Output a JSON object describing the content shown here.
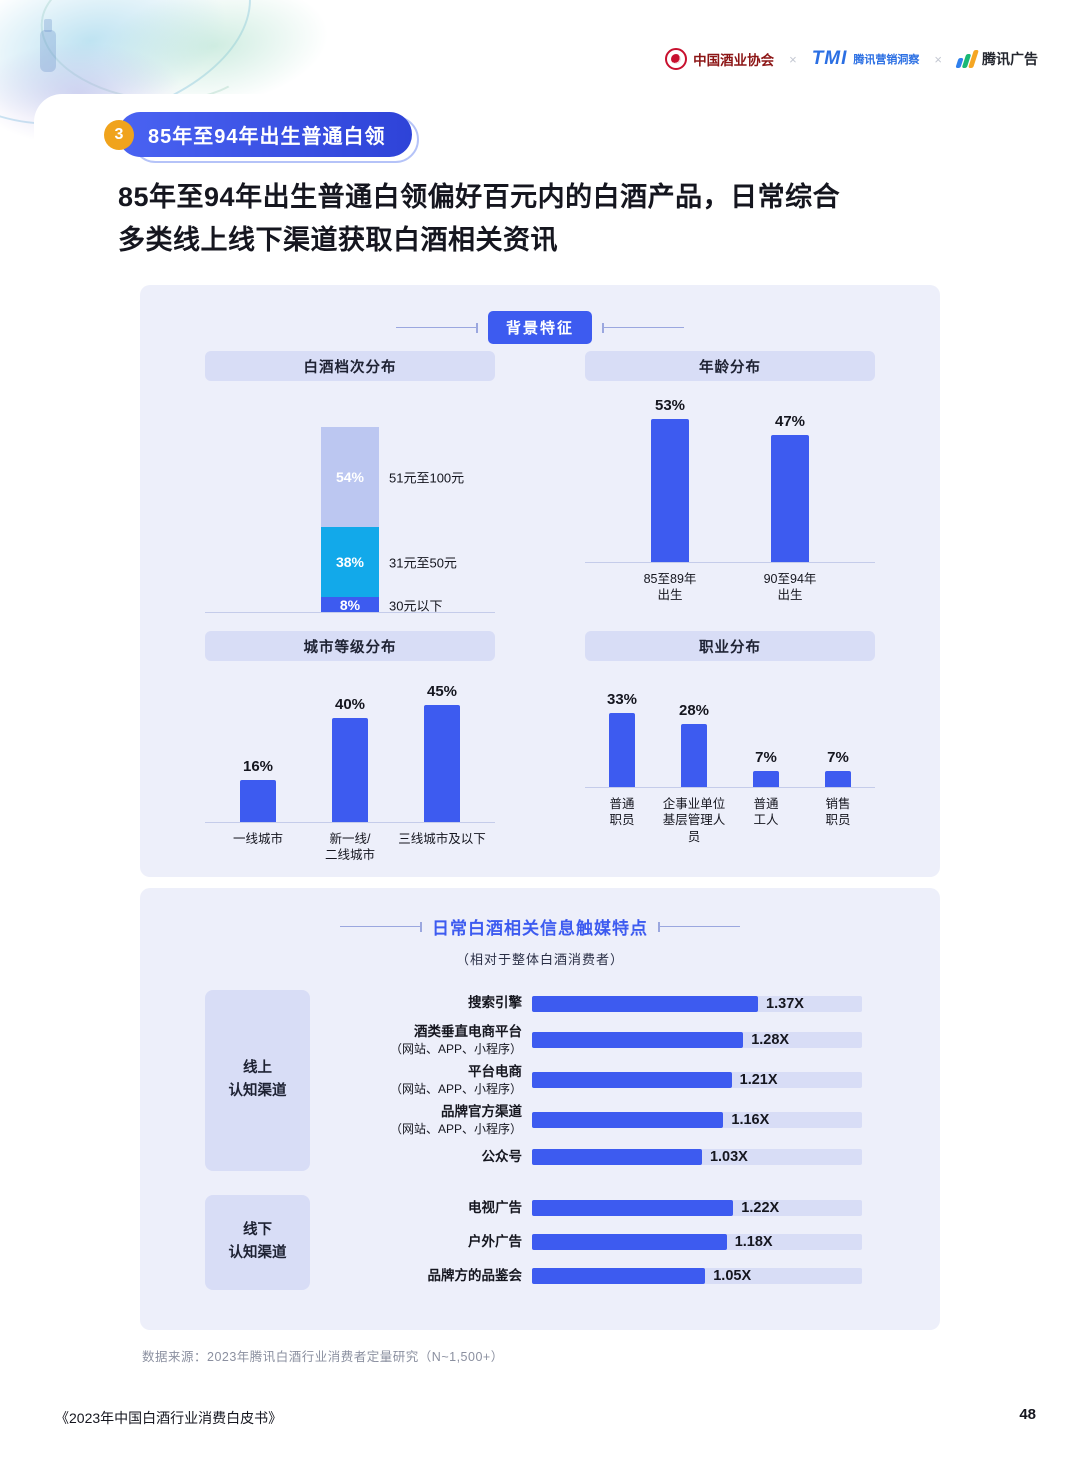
{
  "header": {
    "logo1": "中国酒业协会",
    "logo_sep": "×",
    "logo2_mark": "TMI",
    "logo2_text": "腾讯营销洞察",
    "logo3": "腾讯广告"
  },
  "badge": {
    "number": "3",
    "title": "85年至94年出生普通白领"
  },
  "heading": {
    "line1": "85年至94年出生普通白领偏好百元内的白酒产品，日常综合",
    "line2": "多类线上线下渠道获取白酒相关资讯"
  },
  "section_background": {
    "title": "背景特征"
  },
  "colors": {
    "primary_blue": "#3D5BF0",
    "cyan": "#12A9EA",
    "lavender": "#BCC7F1",
    "panel_bg": "#EDEFFA",
    "track": "#D8DDF6",
    "badge_orange": "#F0A31C"
  },
  "chart_data": [
    {
      "type": "bar",
      "subtype": "stacked-vertical",
      "title": "白酒档次分布",
      "ylim": [
        0,
        100
      ],
      "segments": [
        {
          "label": "51元至100元",
          "value": 54,
          "pct": "54%",
          "color": "#BCC7F1"
        },
        {
          "label": "31元至50元",
          "value": 38,
          "pct": "38%",
          "color": "#12A9EA"
        },
        {
          "label": "30元以下",
          "value": 8,
          "pct": "8%",
          "color": "#3D5BF0"
        }
      ]
    },
    {
      "type": "bar",
      "title": "年龄分布",
      "categories": [
        "85至89年\n出生",
        "90至94年\n出生"
      ],
      "values": [
        53,
        47
      ],
      "ylim": [
        0,
        60
      ]
    },
    {
      "type": "bar",
      "title": "城市等级分布",
      "categories": [
        "一线城市",
        "新一线/\n二线城市",
        "三线城市及以下"
      ],
      "values": [
        16,
        40,
        45
      ],
      "ylim": [
        0,
        50
      ]
    },
    {
      "type": "bar",
      "title": "职业分布",
      "categories": [
        "普通\n职员",
        "企事业单位\n基层管理人员",
        "普通\n工人",
        "销售\n职员"
      ],
      "values": [
        33,
        28,
        7,
        7
      ],
      "ylim": [
        0,
        40
      ]
    },
    {
      "type": "bar",
      "subtype": "horizontal",
      "title": "日常白酒相关信息触媒特点",
      "subtitle": "（相对于整体白酒消费者）",
      "xmax": 2.0,
      "groups": [
        {
          "group_label": "线上\n认知渠道",
          "rows": [
            {
              "label": "搜索引擎",
              "sublabel": "",
              "value": 1.37,
              "display": "1.37X"
            },
            {
              "label": "酒类垂直电商平台",
              "sublabel": "（网站、APP、小程序）",
              "value": 1.28,
              "display": "1.28X"
            },
            {
              "label": "平台电商",
              "sublabel": "（网站、APP、小程序）",
              "value": 1.21,
              "display": "1.21X"
            },
            {
              "label": "品牌官方渠道",
              "sublabel": "（网站、APP、小程序）",
              "value": 1.16,
              "display": "1.16X"
            },
            {
              "label": "公众号",
              "sublabel": "",
              "value": 1.03,
              "display": "1.03X"
            }
          ]
        },
        {
          "group_label": "线下\n认知渠道",
          "rows": [
            {
              "label": "电视广告",
              "sublabel": "",
              "value": 1.22,
              "display": "1.22X"
            },
            {
              "label": "户外广告",
              "sublabel": "",
              "value": 1.18,
              "display": "1.18X"
            },
            {
              "label": "品牌方的品鉴会",
              "sublabel": "",
              "value": 1.05,
              "display": "1.05X"
            }
          ]
        }
      ]
    }
  ],
  "footer": {
    "source": "数据来源：2023年腾讯白酒行业消费者定量研究（N~1,500+）",
    "book_title": "《2023年中国白酒行业消费白皮书》",
    "page_number": "48"
  }
}
